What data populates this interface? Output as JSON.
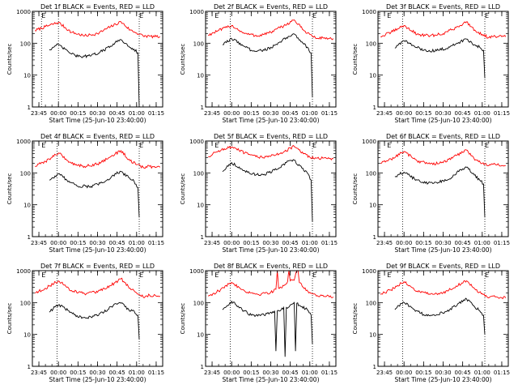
{
  "figure": {
    "background": "#ffffff",
    "event_color": "#000000",
    "lld_color": "#ff0000"
  },
  "chart_data": [
    {
      "type": "line",
      "title": "Det 1f BLACK = Events, RED = LLD",
      "xlabel": "Start Time (25-Jun-10 23:40:00)",
      "ylabel": "Counts/sec",
      "yscale": "log",
      "ylim": [
        1,
        1000
      ],
      "yticks": [
        "1",
        "10",
        "100",
        "1000"
      ],
      "xlim": [
        "23:40",
        "01:20"
      ],
      "xticks": [
        "23:45",
        "00:00",
        "00:15",
        "00:30",
        "00:45",
        "01:00",
        "01:15"
      ],
      "markers": [
        {
          "time": "23:47",
          "label": "E"
        },
        {
          "time": "01:02",
          "label": "E"
        }
      ],
      "dotted_lines": [
        "23:47",
        "00:00",
        "01:02"
      ],
      "series": [
        {
          "name": "LLD",
          "color": "#ff0000",
          "x": [
            "23:42",
            "23:50",
            "00:00",
            "00:10",
            "00:20",
            "00:30",
            "00:40",
            "00:48",
            "00:55",
            "01:00",
            "01:05",
            "01:10",
            "01:15",
            "01:18"
          ],
          "y": [
            250,
            330,
            450,
            220,
            170,
            200,
            330,
            470,
            260,
            210,
            170,
            165,
            160,
            160
          ]
        },
        {
          "name": "Events",
          "color": "#000000",
          "x": [
            "23:53",
            "23:56",
            "00:00",
            "00:08",
            "00:15",
            "00:25",
            "00:35",
            "00:42",
            "00:48",
            "00:54",
            "00:58",
            "01:01",
            "01:02"
          ],
          "y": [
            62,
            75,
            90,
            52,
            38,
            40,
            60,
            95,
            130,
            80,
            65,
            50,
            1
          ]
        }
      ]
    },
    {
      "type": "line",
      "title": "Det 2f BLACK = Events, RED = LLD",
      "xlabel": "Start Time (25-Jun-10 23:40:00)",
      "ylabel": "Counts/sec",
      "yscale": "log",
      "ylim": [
        1,
        1000
      ],
      "yticks": [
        "1",
        "10",
        "100",
        "1000"
      ],
      "xlim": [
        "23:40",
        "01:20"
      ],
      "xticks": [
        "23:45",
        "00:00",
        "00:15",
        "00:30",
        "00:45",
        "01:00",
        "01:15"
      ],
      "markers": [
        {
          "time": "23:47",
          "label": "E"
        },
        {
          "time": "01:02",
          "label": "E"
        }
      ],
      "dotted_lines": [
        "23:59",
        "01:02"
      ],
      "series": [
        {
          "name": "LLD",
          "color": "#ff0000",
          "x": [
            "23:42",
            "23:50",
            "00:00",
            "00:10",
            "00:20",
            "00:30",
            "00:40",
            "00:48",
            "00:55",
            "01:00",
            "01:05",
            "01:10",
            "01:15",
            "01:18"
          ],
          "y": [
            180,
            250,
            360,
            200,
            170,
            220,
            350,
            540,
            260,
            190,
            140,
            150,
            140,
            140
          ]
        },
        {
          "name": "Events",
          "color": "#000000",
          "x": [
            "23:53",
            "23:56",
            "00:00",
            "00:08",
            "00:15",
            "00:25",
            "00:35",
            "00:42",
            "00:48",
            "00:54",
            "00:58",
            "01:01",
            "01:02"
          ],
          "y": [
            90,
            105,
            140,
            90,
            60,
            60,
            90,
            150,
            195,
            110,
            75,
            50,
            2
          ]
        }
      ]
    },
    {
      "type": "line",
      "title": "Det 3f BLACK = Events, RED = LLD",
      "xlabel": "Start Time (25-Jun-10 23:40:00)",
      "ylabel": "Counts/sec",
      "yscale": "log",
      "ylim": [
        1,
        1000
      ],
      "yticks": [
        "1",
        "10",
        "100",
        "1000"
      ],
      "xlim": [
        "23:40",
        "01:20"
      ],
      "xticks": [
        "23:45",
        "00:00",
        "00:15",
        "00:30",
        "00:45",
        "01:00",
        "01:15"
      ],
      "markers": [
        {
          "time": "23:47",
          "label": "E"
        },
        {
          "time": "01:02",
          "label": "E"
        }
      ],
      "dotted_lines": [
        "23:59",
        "01:02"
      ],
      "series": [
        {
          "name": "LLD",
          "color": "#ff0000",
          "x": [
            "23:42",
            "23:50",
            "00:00",
            "00:10",
            "00:20",
            "00:30",
            "00:40",
            "00:48",
            "00:55",
            "01:00",
            "01:05",
            "01:10",
            "01:15",
            "01:18"
          ],
          "y": [
            160,
            220,
            360,
            190,
            170,
            200,
            310,
            470,
            240,
            190,
            150,
            165,
            160,
            160
          ]
        },
        {
          "name": "Events",
          "color": "#000000",
          "x": [
            "23:53",
            "23:56",
            "00:00",
            "00:08",
            "00:15",
            "00:25",
            "00:35",
            "00:42",
            "00:48",
            "00:54",
            "00:58",
            "01:01",
            "01:02"
          ],
          "y": [
            70,
            95,
            120,
            80,
            60,
            58,
            75,
            105,
            135,
            90,
            75,
            60,
            8
          ]
        }
      ]
    },
    {
      "type": "line",
      "title": "Det 4f BLACK = Events, RED = LLD",
      "xlabel": "Start Time (25-Jun-10 23:40:00)",
      "ylabel": "Counts/sec",
      "yscale": "log",
      "ylim": [
        1,
        1000
      ],
      "yticks": [
        "1",
        "10",
        "100",
        "1000"
      ],
      "xlim": [
        "23:40",
        "01:20"
      ],
      "xticks": [
        "23:45",
        "00:00",
        "00:15",
        "00:30",
        "00:45",
        "01:00",
        "01:15"
      ],
      "markers": [
        {
          "time": "23:47",
          "label": "E"
        },
        {
          "time": "01:02",
          "label": "E"
        }
      ],
      "dotted_lines": [
        "23:59",
        "01:02"
      ],
      "series": [
        {
          "name": "LLD",
          "color": "#ff0000",
          "x": [
            "23:42",
            "23:50",
            "00:00",
            "00:10",
            "00:20",
            "00:30",
            "00:40",
            "00:48",
            "00:55",
            "01:00",
            "01:05",
            "01:10",
            "01:15",
            "01:18"
          ],
          "y": [
            160,
            230,
            420,
            200,
            160,
            190,
            320,
            500,
            240,
            180,
            150,
            160,
            150,
            150
          ]
        },
        {
          "name": "Events",
          "color": "#000000",
          "x": [
            "23:53",
            "23:56",
            "00:00",
            "00:08",
            "00:15",
            "00:25",
            "00:35",
            "00:42",
            "00:48",
            "00:54",
            "00:58",
            "01:01",
            "01:02"
          ],
          "y": [
            60,
            70,
            95,
            55,
            38,
            38,
            50,
            85,
            110,
            70,
            55,
            35,
            4
          ]
        }
      ]
    },
    {
      "type": "line",
      "title": "Det 5f BLACK = Events, RED = LLD",
      "xlabel": "Start Time (25-Jun-10 23:40:00)",
      "ylabel": "Counts/sec",
      "yscale": "log",
      "ylim": [
        1,
        1000
      ],
      "yticks": [
        "1",
        "10",
        "100",
        "1000"
      ],
      "xlim": [
        "23:40",
        "01:20"
      ],
      "xticks": [
        "23:45",
        "00:00",
        "00:15",
        "00:30",
        "00:45",
        "01:00",
        "01:15"
      ],
      "markers": [
        {
          "time": "23:47",
          "label": "E"
        },
        {
          "time": "01:02",
          "label": "E"
        }
      ],
      "dotted_lines": [
        "23:59",
        "01:02"
      ],
      "series": [
        {
          "name": "LLD",
          "color": "#ff0000",
          "x": [
            "23:42",
            "23:50",
            "00:00",
            "00:10",
            "00:20",
            "00:30",
            "00:40",
            "00:48",
            "00:55",
            "01:00",
            "01:05",
            "01:10",
            "01:15",
            "01:18"
          ],
          "y": [
            320,
            500,
            650,
            420,
            310,
            330,
            460,
            680,
            400,
            310,
            290,
            290,
            280,
            280
          ]
        },
        {
          "name": "Events",
          "color": "#000000",
          "x": [
            "23:53",
            "23:56",
            "00:00",
            "00:08",
            "00:15",
            "00:25",
            "00:35",
            "00:42",
            "00:48",
            "00:54",
            "00:58",
            "01:01",
            "01:02"
          ],
          "y": [
            110,
            150,
            210,
            130,
            90,
            90,
            130,
            210,
            250,
            140,
            100,
            60,
            3
          ]
        }
      ]
    },
    {
      "type": "line",
      "title": "Det 6f BLACK = Events, RED = LLD",
      "xlabel": "Start Time (25-Jun-10 23:40:00)",
      "ylabel": "Counts/sec",
      "yscale": "log",
      "ylim": [
        1,
        1000
      ],
      "yticks": [
        "1",
        "10",
        "100",
        "1000"
      ],
      "xlim": [
        "23:40",
        "01:20"
      ],
      "xticks": [
        "23:45",
        "00:00",
        "00:15",
        "00:30",
        "00:45",
        "01:00",
        "01:15"
      ],
      "markers": [
        {
          "time": "23:47",
          "label": "E"
        },
        {
          "time": "01:02",
          "label": "E"
        }
      ],
      "dotted_lines": [
        "23:59",
        "01:02"
      ],
      "series": [
        {
          "name": "LLD",
          "color": "#ff0000",
          "x": [
            "23:42",
            "23:50",
            "00:00",
            "00:10",
            "00:20",
            "00:30",
            "00:40",
            "00:48",
            "00:55",
            "01:00",
            "01:05",
            "01:10",
            "01:15",
            "01:18"
          ],
          "y": [
            200,
            270,
            470,
            240,
            190,
            210,
            350,
            520,
            260,
            200,
            170,
            185,
            170,
            170
          ]
        },
        {
          "name": "Events",
          "color": "#000000",
          "x": [
            "23:53",
            "23:56",
            "00:00",
            "00:08",
            "00:15",
            "00:25",
            "00:35",
            "00:42",
            "00:48",
            "00:54",
            "00:58",
            "01:01",
            "01:02"
          ],
          "y": [
            75,
            90,
            105,
            65,
            48,
            50,
            65,
            110,
            150,
            85,
            60,
            45,
            4
          ]
        }
      ]
    },
    {
      "type": "line",
      "title": "Det 7f BLACK = Events, RED = LLD",
      "xlabel": "Start Time (25-Jun-10 23:40:00)",
      "ylabel": "Counts/sec",
      "yscale": "log",
      "ylim": [
        1,
        1000
      ],
      "yticks": [
        "1",
        "10",
        "100",
        "1000"
      ],
      "xlim": [
        "23:40",
        "01:20"
      ],
      "xticks": [
        "23:45",
        "00:00",
        "00:15",
        "00:30",
        "00:45",
        "01:00",
        "01:15"
      ],
      "markers": [
        {
          "time": "23:47",
          "label": "E"
        },
        {
          "time": "01:02",
          "label": "E"
        }
      ],
      "dotted_lines": [
        "23:59",
        "01:02"
      ],
      "series": [
        {
          "name": "LLD",
          "color": "#ff0000",
          "x": [
            "23:42",
            "23:50",
            "00:00",
            "00:10",
            "00:20",
            "00:30",
            "00:40",
            "00:48",
            "00:55",
            "01:00",
            "01:05",
            "01:10",
            "01:15",
            "01:18"
          ],
          "y": [
            200,
            280,
            480,
            240,
            190,
            210,
            340,
            560,
            280,
            200,
            150,
            170,
            160,
            160
          ]
        },
        {
          "name": "Events",
          "color": "#000000",
          "x": [
            "23:53",
            "23:56",
            "00:00",
            "00:08",
            "00:15",
            "00:25",
            "00:35",
            "00:42",
            "00:48",
            "00:54",
            "00:58",
            "01:01",
            "01:02"
          ],
          "y": [
            50,
            65,
            85,
            55,
            35,
            35,
            50,
            80,
            95,
            60,
            55,
            40,
            7
          ]
        }
      ]
    },
    {
      "type": "line",
      "title": "Det 8f BLACK = Events, RED = LLD",
      "xlabel": "Start Time (25-Jun-10 23:40:00)",
      "ylabel": "Counts/sec",
      "yscale": "log",
      "ylim": [
        1,
        1000
      ],
      "yticks": [
        "1",
        "10",
        "100",
        "1000"
      ],
      "xlim": [
        "23:40",
        "01:20"
      ],
      "xticks": [
        "23:45",
        "00:00",
        "00:15",
        "00:30",
        "00:45",
        "01:00",
        "01:15"
      ],
      "markers": [
        {
          "time": "23:47",
          "label": "E"
        },
        {
          "time": "01:02",
          "label": "E"
        }
      ],
      "dotted_lines": [
        "23:59",
        "01:02"
      ],
      "series": [
        {
          "name": "LLD",
          "color": "#ff0000",
          "x": [
            "23:42",
            "23:50",
            "00:00",
            "00:10",
            "00:20",
            "00:30",
            "00:34",
            "00:35",
            "00:36",
            "00:40",
            "00:43",
            "00:44",
            "00:45",
            "00:48",
            "00:50",
            "00:51",
            "00:52",
            "00:55",
            "01:00",
            "01:05",
            "01:10",
            "01:15",
            "01:18"
          ],
          "y": [
            160,
            230,
            430,
            230,
            180,
            210,
            260,
            1000,
            280,
            340,
            460,
            1000,
            480,
            500,
            1000,
            1000,
            420,
            300,
            210,
            160,
            170,
            150,
            150
          ]
        },
        {
          "name": "Events",
          "color": "#000000",
          "x": [
            "23:53",
            "23:56",
            "00:00",
            "00:08",
            "00:15",
            "00:25",
            "00:33",
            "00:34",
            "00:35",
            "00:38",
            "00:40",
            "00:41",
            "00:42",
            "00:48",
            "00:49",
            "00:50",
            "00:54",
            "00:58",
            "01:01",
            "01:02"
          ],
          "y": [
            60,
            75,
            110,
            60,
            40,
            40,
            55,
            3,
            55,
            60,
            70,
            2,
            70,
            100,
            3,
            95,
            75,
            60,
            40,
            5
          ]
        }
      ]
    },
    {
      "type": "line",
      "title": "Det 9f BLACK = Events, RED = LLD",
      "xlabel": "Start Time (25-Jun-10 23:40:00)",
      "ylabel": "Counts/sec",
      "yscale": "log",
      "ylim": [
        1,
        1000
      ],
      "yticks": [
        "1",
        "10",
        "100",
        "1000"
      ],
      "xlim": [
        "23:40",
        "01:20"
      ],
      "xticks": [
        "23:45",
        "00:00",
        "00:15",
        "00:30",
        "00:45",
        "01:00",
        "01:15"
      ],
      "markers": [
        {
          "time": "23:47",
          "label": "E"
        },
        {
          "time": "01:02",
          "label": "E"
        }
      ],
      "dotted_lines": [
        "23:59",
        "01:02"
      ],
      "series": [
        {
          "name": "LLD",
          "color": "#ff0000",
          "x": [
            "23:42",
            "23:50",
            "00:00",
            "00:10",
            "00:20",
            "00:30",
            "00:40",
            "00:48",
            "00:55",
            "01:00",
            "01:05",
            "01:10",
            "01:15",
            "01:18"
          ],
          "y": [
            180,
            250,
            450,
            230,
            180,
            200,
            330,
            480,
            250,
            190,
            140,
            150,
            140,
            140
          ]
        },
        {
          "name": "Events",
          "color": "#000000",
          "x": [
            "23:53",
            "23:56",
            "00:00",
            "00:08",
            "00:15",
            "00:25",
            "00:35",
            "00:42",
            "00:48",
            "00:54",
            "00:58",
            "01:01",
            "01:02"
          ],
          "y": [
            60,
            80,
            100,
            60,
            42,
            42,
            60,
            95,
            130,
            75,
            55,
            40,
            10
          ]
        }
      ]
    }
  ]
}
